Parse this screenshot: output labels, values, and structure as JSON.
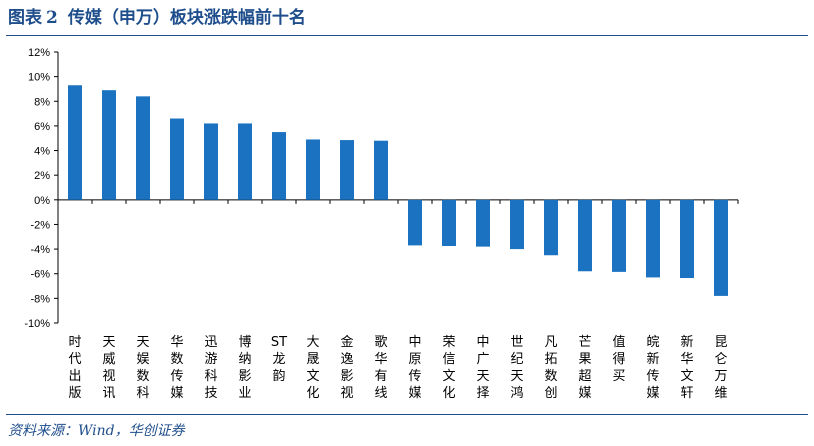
{
  "figure": {
    "label": "图表",
    "number": "2",
    "title": "传媒（申万）板块涨跌幅前十名"
  },
  "source": "资料来源：Wind，华创证券",
  "colors": {
    "bar": "#1a72c0",
    "accent": "#1f4e8c"
  },
  "chart_data": {
    "type": "bar",
    "title": "",
    "xlabel": "",
    "ylabel": "",
    "ylim": [
      -10,
      12
    ],
    "ytick_step": 2,
    "ytick_format": "percent",
    "grid": false,
    "legend": "none",
    "categories": [
      "时代出版",
      "天威视讯",
      "天娱数科",
      "华数传媒",
      "迅游科技",
      "博纳影业",
      "ST龙韵",
      "大晟文化",
      "金逸影视",
      "歌华有线",
      "中原传媒",
      "荣信文化",
      "中广天择",
      "世纪天鸿",
      "凡拓数创",
      "芒果超媒",
      "值得买",
      "皖新传媒",
      "新华文轩",
      "昆仑万维"
    ],
    "values": [
      9.3,
      8.9,
      8.4,
      6.6,
      6.2,
      6.2,
      5.5,
      4.9,
      4.85,
      4.8,
      -3.7,
      -3.75,
      -3.8,
      -4.0,
      -4.5,
      -5.8,
      -5.85,
      -6.3,
      -6.35,
      -7.8
    ]
  }
}
